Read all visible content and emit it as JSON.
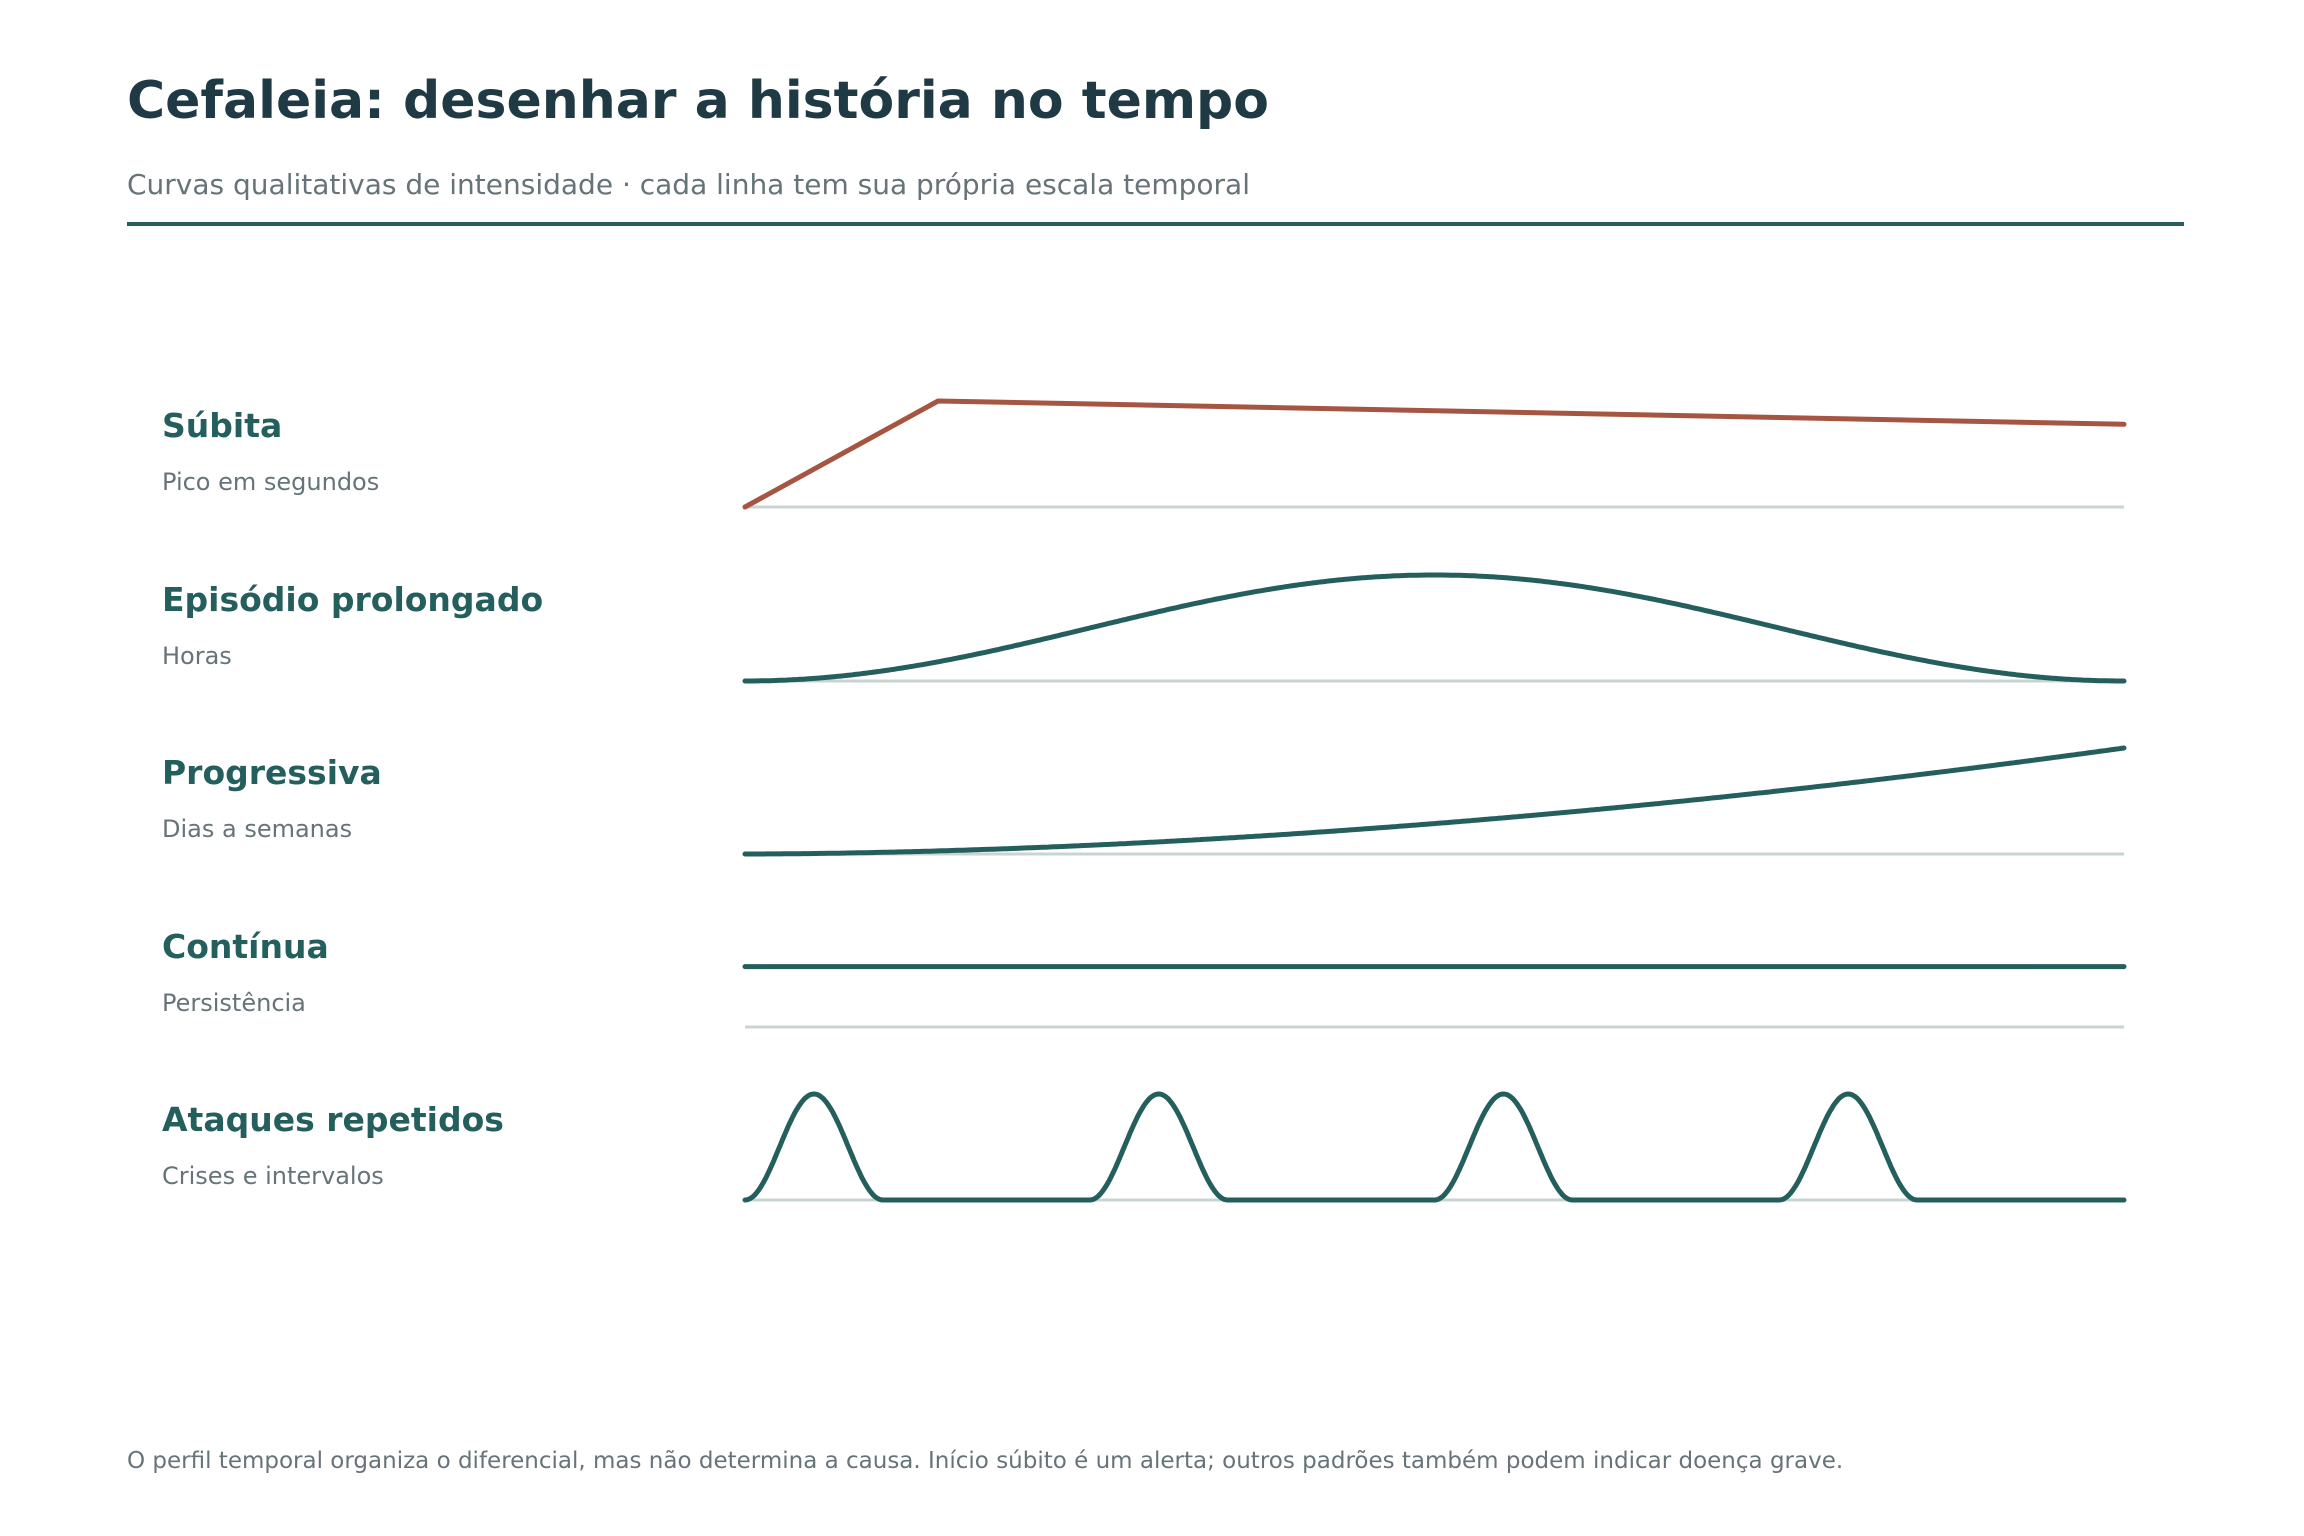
{
  "header": {
    "title": "Cefaleia: desenhar a história no tempo",
    "subtitle": "Curvas qualitativas de intensidade · cada linha tem sua própria escala temporal"
  },
  "colors": {
    "title": "#203a45",
    "accent": "#245f5e",
    "alert": "#a65543",
    "muted": "#667479",
    "baseline": "#c9d4d2"
  },
  "chart_data": {
    "type": "line",
    "y_scale": "intensidade relativa (0 = basal, 1 = máxima)",
    "series": [
      {
        "name": "Súbita",
        "description": "Pico em segundos",
        "color": "#a65543",
        "shape": "súbita",
        "points": [
          [
            0,
            0
          ],
          [
            0.14,
            1
          ],
          [
            1,
            0.78
          ]
        ]
      },
      {
        "name": "Episódio prolongado",
        "description": "Horas",
        "color": "#245f5e",
        "shape": "episódio",
        "peak": 1,
        "peak_at": 0.5
      },
      {
        "name": "Progressiva",
        "description": "Dias a semanas",
        "color": "#245f5e",
        "shape": "progressiva",
        "end_level": 1
      },
      {
        "name": "Contínua",
        "description": "Persistência",
        "color": "#245f5e",
        "shape": "contínua",
        "level": 0.57
      },
      {
        "name": "Ataques repetidos",
        "description": "Crises e intervalos",
        "color": "#245f5e",
        "shape": "ataques",
        "attack_count": 4,
        "peak": 1
      }
    ]
  },
  "footnote": "O perfil temporal organiza o diferencial, mas não determina a causa. Início súbito é um alerta; outros padrões também podem indicar doença grave."
}
